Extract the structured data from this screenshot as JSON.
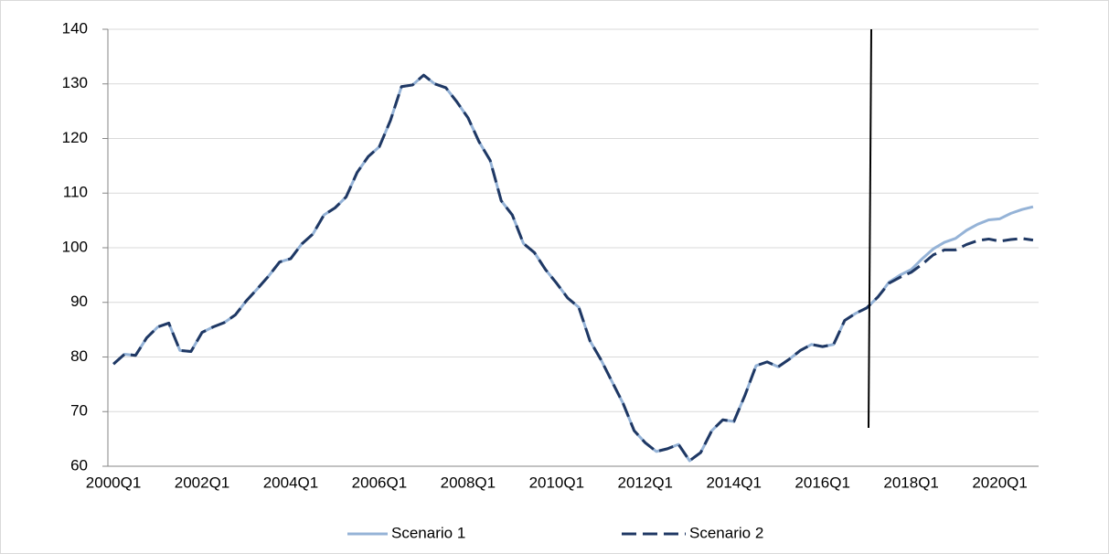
{
  "chart_data": {
    "type": "line",
    "categories": [
      "2000Q1",
      null,
      null,
      null,
      null,
      null,
      null,
      null,
      "2002Q1",
      null,
      null,
      null,
      null,
      null,
      null,
      null,
      "2004Q1",
      null,
      null,
      null,
      null,
      null,
      null,
      null,
      "2006Q1",
      null,
      null,
      null,
      null,
      null,
      null,
      null,
      "2008Q1",
      null,
      null,
      null,
      null,
      null,
      null,
      null,
      "2010Q1",
      null,
      null,
      null,
      null,
      null,
      null,
      null,
      "2012Q1",
      null,
      null,
      null,
      null,
      null,
      null,
      null,
      "2014Q1",
      null,
      null,
      null,
      null,
      null,
      null,
      null,
      "2016Q1",
      null,
      null,
      null,
      null,
      null,
      null,
      null,
      "2018Q1",
      null,
      null,
      null,
      null,
      null,
      null,
      null,
      "2020Q1",
      null,
      null,
      null
    ],
    "series": [
      {
        "name": "Scenario 1",
        "color": "#95b3d7",
        "dashed": false,
        "values": [
          78.7,
          80.5,
          80.3,
          83.5,
          85.5,
          86.2,
          81.2,
          81.0,
          84.5,
          85.5,
          86.3,
          87.7,
          90.3,
          92.5,
          94.8,
          97.4,
          98.0,
          100.7,
          102.5,
          106.0,
          107.3,
          109.3,
          113.8,
          116.7,
          118.5,
          123.3,
          129.5,
          129.8,
          131.6,
          130.0,
          129.3,
          126.7,
          123.8,
          119.4,
          116.0,
          108.6,
          106.0,
          100.8,
          99.1,
          96.0,
          93.5,
          90.8,
          89.1,
          83.0,
          79.5,
          75.5,
          71.5,
          66.5,
          64.3,
          62.7,
          63.2,
          64.0,
          61.0,
          62.5,
          66.5,
          68.5,
          68.2,
          73.0,
          78.4,
          79.1,
          78.2,
          79.6,
          81.2,
          82.3,
          81.9,
          82.3,
          86.7,
          88.0,
          89.0,
          91.0,
          93.7,
          95.0,
          96.0,
          98.0,
          99.8,
          101.0,
          101.7,
          103.2,
          104.3,
          105.1,
          105.3,
          106.3,
          107.0,
          107.5
        ]
      },
      {
        "name": "Scenario 2",
        "color": "#1f3864",
        "dashed": true,
        "values": [
          78.7,
          80.5,
          80.3,
          83.5,
          85.5,
          86.2,
          81.2,
          81.0,
          84.5,
          85.5,
          86.3,
          87.7,
          90.3,
          92.5,
          94.8,
          97.4,
          98.0,
          100.7,
          102.5,
          106.0,
          107.3,
          109.3,
          113.8,
          116.7,
          118.5,
          123.3,
          129.5,
          129.8,
          131.6,
          130.0,
          129.3,
          126.7,
          123.8,
          119.4,
          116.0,
          108.6,
          106.0,
          100.8,
          99.1,
          96.0,
          93.5,
          90.8,
          89.1,
          83.0,
          79.5,
          75.5,
          71.5,
          66.5,
          64.3,
          62.7,
          63.2,
          64.0,
          61.0,
          62.5,
          66.5,
          68.5,
          68.2,
          73.0,
          78.4,
          79.1,
          78.2,
          79.6,
          81.2,
          82.3,
          81.9,
          82.3,
          86.7,
          88.0,
          89.0,
          91.0,
          93.5,
          94.6,
          95.5,
          97.0,
          98.7,
          99.6,
          99.6,
          100.6,
          101.3,
          101.6,
          101.2,
          101.5,
          101.7,
          101.4
        ]
      }
    ],
    "ylim": [
      60,
      140
    ],
    "yticks": [
      60,
      70,
      80,
      90,
      100,
      110,
      120,
      130,
      140
    ],
    "grid": true,
    "legend": "bottom"
  }
}
